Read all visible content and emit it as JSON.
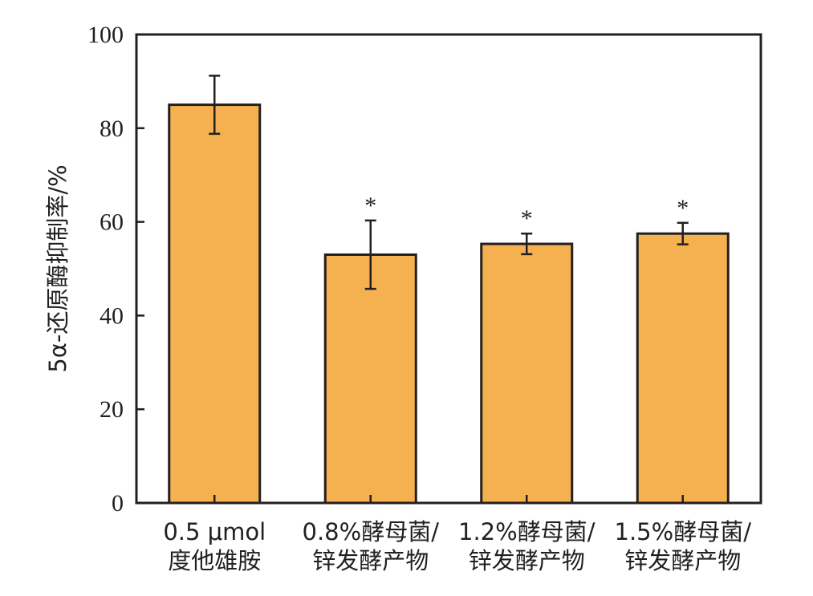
{
  "chart_data": {
    "type": "bar",
    "categories": [
      [
        "0.5 μmol",
        "度他雄胺"
      ],
      [
        "0.8%酵母菌/",
        "锌发酵产物"
      ],
      [
        "1.2%酵母菌/",
        "锌发酵产物"
      ],
      [
        "1.5%酵母菌/",
        "锌发酵产物"
      ]
    ],
    "values": [
      85,
      53,
      55.3,
      57.5
    ],
    "errors": [
      6.2,
      7.3,
      2.2,
      2.3
    ],
    "annotations": [
      "",
      "*",
      "*",
      "*"
    ],
    "title": "",
    "xlabel": "",
    "ylabel": "5α-还原酶抑制率/%",
    "ylim": [
      0,
      100
    ],
    "yticks": [
      0,
      20,
      40,
      60,
      80,
      100
    ],
    "grid": false,
    "colors": {
      "bar_fill": "#f5b150",
      "stroke": "#231f20"
    }
  }
}
